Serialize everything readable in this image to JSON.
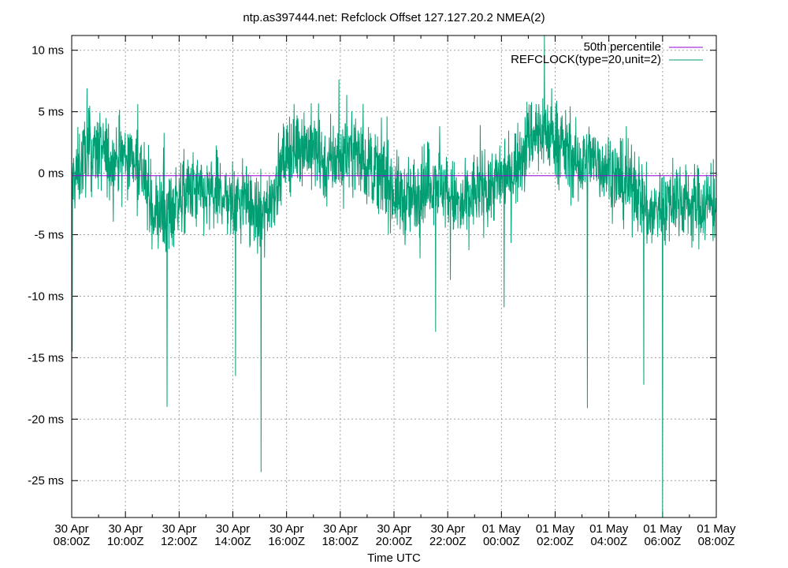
{
  "chart_data": {
    "type": "line",
    "title": "ntp.as397444.net: Refclock Offset 127.127.20.2 NMEA(2)",
    "xlabel": "Time UTC",
    "ylabel": "",
    "x_ticks": [
      [
        "30 Apr",
        "08:00Z"
      ],
      [
        "30 Apr",
        "10:00Z"
      ],
      [
        "30 Apr",
        "12:00Z"
      ],
      [
        "30 Apr",
        "14:00Z"
      ],
      [
        "30 Apr",
        "16:00Z"
      ],
      [
        "30 Apr",
        "18:00Z"
      ],
      [
        "30 Apr",
        "20:00Z"
      ],
      [
        "30 Apr",
        "22:00Z"
      ],
      [
        "01 May",
        "00:00Z"
      ],
      [
        "01 May",
        "02:00Z"
      ],
      [
        "01 May",
        "04:00Z"
      ],
      [
        "01 May",
        "06:00Z"
      ],
      [
        "01 May",
        "08:00Z"
      ]
    ],
    "x_range_hours": [
      0,
      24
    ],
    "y_ticks": [
      "10 ms",
      "5 ms",
      "0 ms",
      "-5 ms",
      "-10 ms",
      "-15 ms",
      "-20 ms",
      "-25 ms"
    ],
    "ylim": [
      -28,
      11.2
    ],
    "grid": true,
    "legend_position": "top-right",
    "colors": {
      "median": "#9400d3",
      "offset": "#009e73"
    },
    "series": [
      {
        "name": "50th percentile",
        "hours": [
          0,
          24
        ],
        "values": [
          -0.2,
          -0.2
        ]
      },
      {
        "name": "REFCLOCK(type=20,unit=2)",
        "envelope_hours": [
          0,
          0.5,
          1,
          1.5,
          2,
          2.5,
          3,
          3.5,
          4,
          4.5,
          5,
          5.5,
          6,
          6.5,
          7,
          7.5,
          8,
          8.5,
          9,
          9.5,
          10,
          10.5,
          11,
          11.5,
          12,
          12.5,
          13,
          13.5,
          14,
          14.5,
          15,
          15.5,
          16,
          16.5,
          17,
          17.5,
          18,
          18.5,
          19,
          19.5,
          20,
          20.5,
          21,
          21.5,
          22,
          22.5,
          23,
          23.5,
          24
        ],
        "envelope_center": [
          -1.0,
          1.5,
          2.0,
          1.0,
          1.5,
          1.0,
          -3.0,
          -3.5,
          -2.0,
          -1.5,
          -2.0,
          -1.5,
          -2.5,
          -2.0,
          -4.0,
          -1.5,
          1.5,
          2.5,
          2.0,
          0.5,
          1.5,
          2.0,
          0.5,
          0.0,
          -1.5,
          -2.5,
          -1.0,
          -0.5,
          -1.5,
          -3.0,
          -1.5,
          -1.0,
          -0.5,
          0.5,
          3.0,
          3.5,
          3.0,
          1.5,
          0.5,
          1.0,
          0.5,
          -1.0,
          -1.0,
          -3.5,
          -2.5,
          -2.0,
          -2.5,
          -2.5,
          -2.5
        ],
        "spikes": [
          {
            "hour": 0.02,
            "value": -14.5
          },
          {
            "hour": 3.55,
            "value": -19.0
          },
          {
            "hour": 6.1,
            "value": -16.5
          },
          {
            "hour": 7.05,
            "value": -24.3
          },
          {
            "hour": 13.55,
            "value": -12.9
          },
          {
            "hour": 16.1,
            "value": -10.9
          },
          {
            "hour": 19.2,
            "value": -19.1
          },
          {
            "hour": 21.3,
            "value": -17.2
          },
          {
            "hour": 22.0,
            "value": -28.0
          }
        ],
        "max_value": 11.2,
        "min_value": -28.0
      }
    ]
  }
}
